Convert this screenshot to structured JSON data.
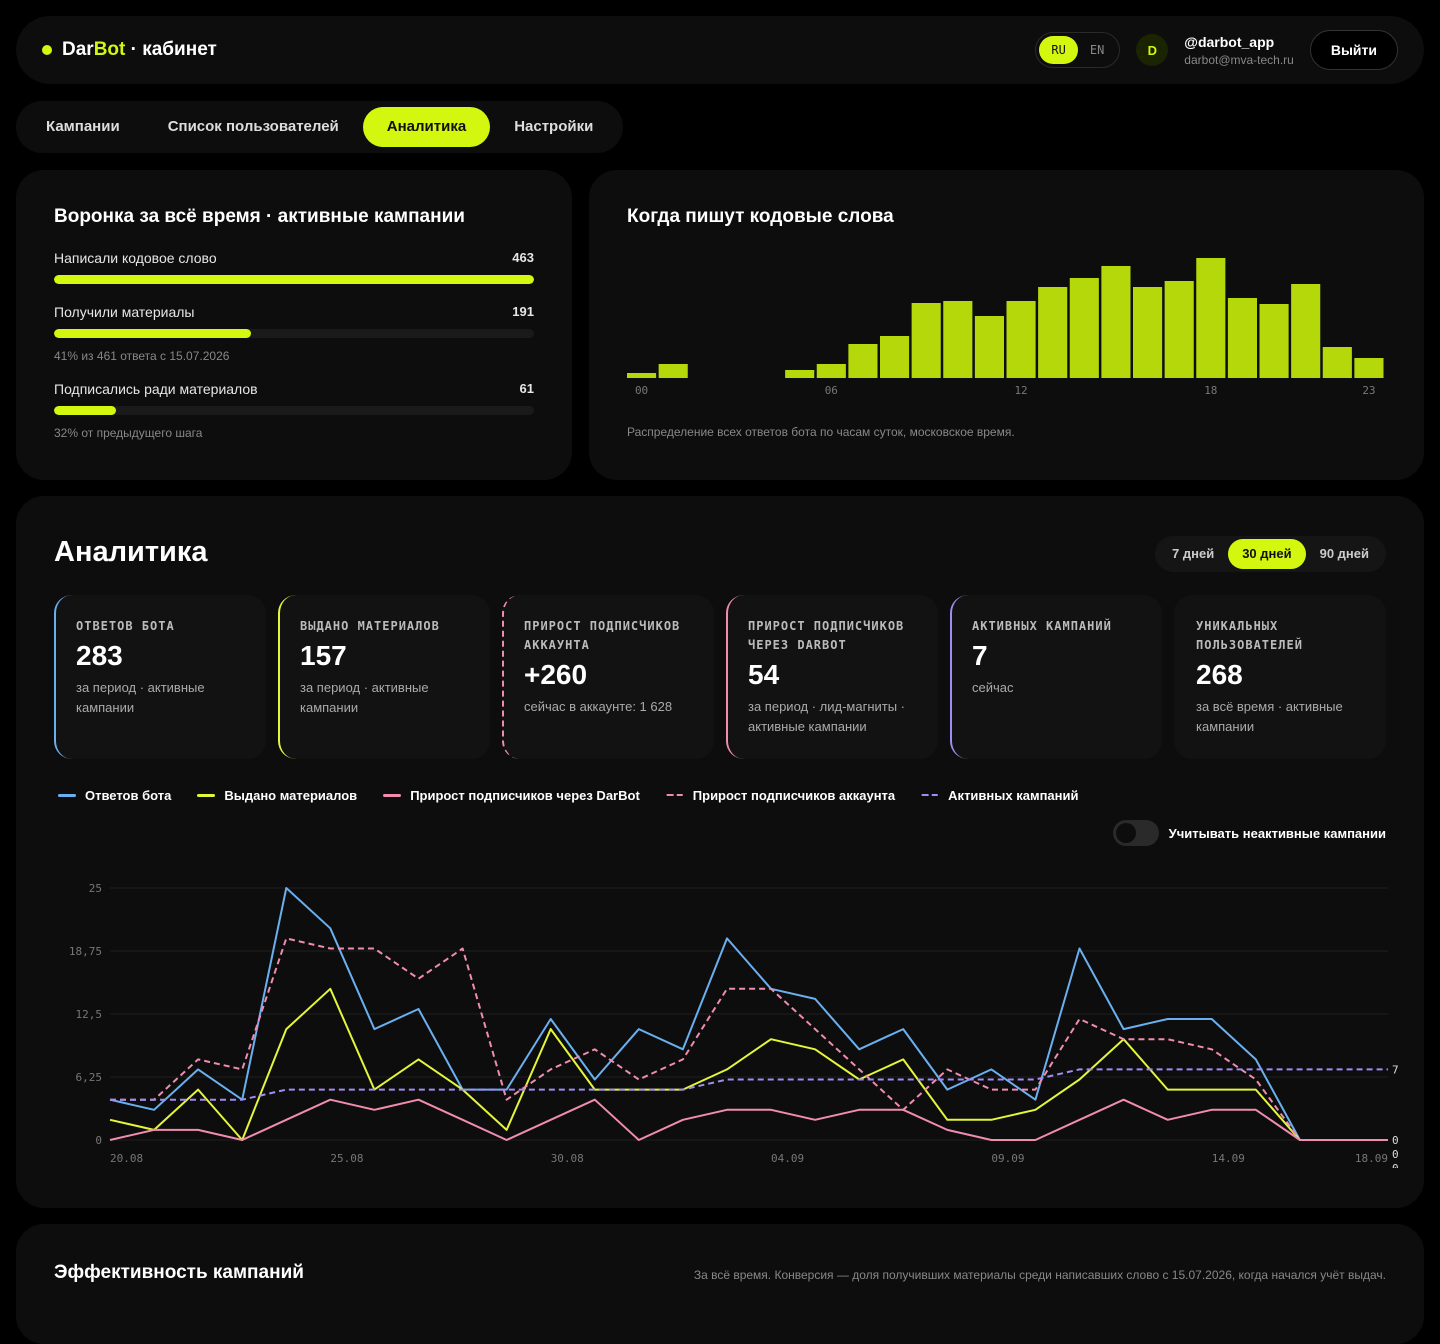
{
  "header": {
    "brand_a": "Dar",
    "brand_b": "Bot",
    "brand_c": " · кабинет",
    "lang_ru": "RU",
    "lang_en": "EN",
    "avatar_letter": "D",
    "username": "@darbot_app",
    "email": "darbot@mva-tech.ru",
    "logout": "Выйти"
  },
  "tabs": [
    "Кампании",
    "Список пользователей",
    "Аналитика",
    "Настройки"
  ],
  "funnel": {
    "title": "Воронка за всё время · активные кампании",
    "rows": [
      {
        "label": "Написали кодовое слово",
        "value": "463",
        "fraction": 1.0,
        "note": ""
      },
      {
        "label": "Получили материалы",
        "value": "191",
        "fraction": 0.41,
        "note": "41% из 461 ответа с 15.07.2026"
      },
      {
        "label": "Подписались ради материалов",
        "value": "61",
        "fraction": 0.13,
        "note": "32% от предыдущего шага"
      }
    ]
  },
  "hours_card": {
    "title": "Когда пишут кодовые слова",
    "caption": "Распределение всех ответов бота по часам суток, московское время."
  },
  "analytics": {
    "title": "Аналитика",
    "periods": [
      "7 дней",
      "30 дней",
      "90 дней"
    ],
    "kpis": [
      {
        "label": "Ответов бота",
        "value": "283",
        "desc": "за период · активные кампании",
        "color": "#6ab0f0",
        "dashed": false
      },
      {
        "label": "Выдано материалов",
        "value": "157",
        "desc": "за период · активные кампании",
        "color": "#e4f53a",
        "dashed": false
      },
      {
        "label": "Прирост подписчиков аккаунта",
        "value": "+260",
        "desc": "сейчас в аккаунте: 1 628",
        "color": "#f08cb0",
        "dashed": true
      },
      {
        "label": "Прирост подписчиков через DarBot",
        "value": "54",
        "desc": "за период · лид-магниты · активные кампании",
        "color": "#f08cb0",
        "dashed": false
      },
      {
        "label": "Активных кампаний",
        "value": "7",
        "desc": "сейчас",
        "color": "#a08cf5",
        "dashed": false
      },
      {
        "label": "Уникальных пользователей",
        "value": "268",
        "desc": "за всё время · активные кампании",
        "color": "#121212",
        "dashed": false
      }
    ],
    "legend": [
      {
        "name": "Ответов бота",
        "color": "#6ab0f0",
        "dashed": false
      },
      {
        "name": "Выдано материалов",
        "color": "#e4f53a",
        "dashed": false
      },
      {
        "name": "Прирост подписчиков через DarBot",
        "color": "#f08cb0",
        "dashed": false
      },
      {
        "name": "Прирост подписчиков аккаунта",
        "color": "#f08cb0",
        "dashed": true
      },
      {
        "name": "Активных кампаний",
        "color": "#a08cf5",
        "dashed": true
      }
    ],
    "toggle_label": "Учитывать неактивные кампании"
  },
  "efficiency": {
    "title": "Эффективность кампаний",
    "note": "За всё время. Конверсия — доля получивших материалы среди написавших слово с 15.07.2026, когда начался учёт выдач."
  },
  "chart_data": [
    {
      "type": "bar",
      "x": [
        0,
        1,
        2,
        3,
        4,
        5,
        6,
        7,
        8,
        9,
        10,
        11,
        12,
        13,
        14,
        15,
        16,
        17,
        18,
        19,
        20,
        21,
        22,
        23
      ],
      "x_tick_labels": [
        "00",
        "06",
        "12",
        "18",
        "23"
      ],
      "values": [
        5,
        14,
        0,
        0,
        0,
        8,
        14,
        34,
        42,
        75,
        77,
        62,
        77,
        91,
        100,
        112,
        91,
        97,
        120,
        80,
        74,
        94,
        31,
        20
      ],
      "color": "#b4d80a",
      "axis_visible": false
    },
    {
      "type": "line",
      "x": [
        "20.08",
        "21.08",
        "22.08",
        "23.08",
        "24.08",
        "25.08",
        "26.08",
        "27.08",
        "28.08",
        "29.08",
        "30.08",
        "31.08",
        "01.09",
        "02.09",
        "03.09",
        "04.09",
        "05.09",
        "06.09",
        "07.09",
        "08.09",
        "09.09",
        "10.09",
        "11.09",
        "12.09",
        "13.09",
        "14.09",
        "15.09",
        "16.09",
        "17.09",
        "18.09"
      ],
      "x_tick_labels": [
        "20.08",
        "25.08",
        "30.08",
        "04.09",
        "09.09",
        "14.09",
        "18.09"
      ],
      "y_ticks": [
        "0",
        "6,25",
        "12,5",
        "18,75",
        "25"
      ],
      "ylim": [
        0,
        25
      ],
      "grid": true,
      "end_labels": [
        "7",
        "0",
        "0",
        "0"
      ],
      "series": [
        {
          "name": "Ответов бота",
          "color": "#6ab0f0",
          "dashed": false,
          "values": [
            4,
            3,
            7,
            4,
            25,
            21,
            11,
            13,
            5,
            5,
            12,
            6,
            11,
            9,
            20,
            15,
            14,
            9,
            11,
            5,
            7,
            4,
            19,
            11,
            12,
            12,
            8,
            0,
            0,
            0
          ]
        },
        {
          "name": "Выдано материалов",
          "color": "#e4f53a",
          "dashed": false,
          "values": [
            2,
            1,
            5,
            0,
            11,
            15,
            5,
            8,
            5,
            1,
            11,
            5,
            5,
            5,
            7,
            10,
            9,
            6,
            8,
            2,
            2,
            3,
            6,
            10,
            5,
            5,
            5,
            0,
            0,
            0
          ]
        },
        {
          "name": "Прирост подписчиков через DarBot",
          "color": "#f08cb0",
          "dashed": false,
          "values": [
            0,
            1,
            1,
            0,
            2,
            4,
            3,
            4,
            2,
            0,
            2,
            4,
            0,
            2,
            3,
            3,
            2,
            3,
            3,
            1,
            0,
            0,
            2,
            4,
            2,
            3,
            3,
            0,
            0,
            0
          ]
        },
        {
          "name": "Прирост подписчиков аккаунта",
          "color": "#f08cb0",
          "dashed": true,
          "values": [
            4,
            4,
            8,
            7,
            20,
            19,
            19,
            16,
            19,
            4,
            7,
            9,
            6,
            8,
            15,
            15,
            11,
            7,
            3,
            7,
            5,
            5,
            12,
            10,
            10,
            9,
            6,
            0,
            0,
            0
          ]
        },
        {
          "name": "Активных кампаний",
          "color": "#a08cf5",
          "dashed": true,
          "values": [
            4,
            4,
            4,
            4,
            5,
            5,
            5,
            5,
            5,
            5,
            5,
            5,
            5,
            5,
            6,
            6,
            6,
            6,
            6,
            6,
            6,
            6,
            7,
            7,
            7,
            7,
            7,
            7,
            7,
            7
          ]
        }
      ]
    }
  ]
}
